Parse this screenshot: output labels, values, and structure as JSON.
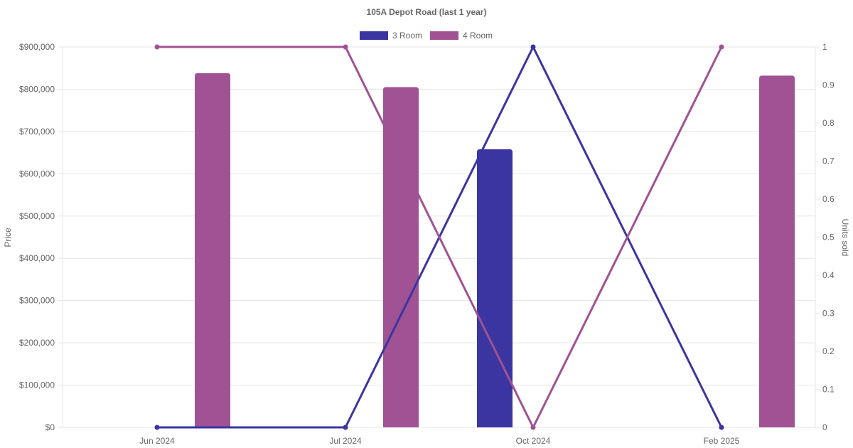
{
  "chart_data": {
    "type": "bar",
    "title": "105A Depot Road (last 1 year)",
    "categories": [
      "Jun 2024",
      "Jul 2024",
      "Oct 2024",
      "Feb 2025"
    ],
    "y_left": {
      "label": "Price",
      "range": [
        0,
        900000
      ],
      "ticks": [
        "$0",
        "$100,000",
        "$200,000",
        "$300,000",
        "$400,000",
        "$500,000",
        "$600,000",
        "$700,000",
        "$800,000",
        "$900,000"
      ]
    },
    "y_right": {
      "label": "Units sold",
      "range": [
        0,
        1
      ],
      "ticks": [
        "0",
        "0.1",
        "0.2",
        "0.3",
        "0.4",
        "0.5",
        "0.6",
        "0.7",
        "0.8",
        "0.9",
        "1"
      ]
    },
    "series": [
      {
        "name": "3 Room",
        "color": "#3a35a0",
        "price": [
          null,
          null,
          658000,
          null
        ],
        "units_sold": [
          0,
          0,
          1,
          0
        ]
      },
      {
        "name": "4 Room",
        "color": "#a05294",
        "price": [
          838000,
          805000,
          null,
          832000
        ],
        "units_sold": [
          1,
          1,
          0,
          1
        ]
      }
    ],
    "legend": "top-center",
    "grid": true
  }
}
